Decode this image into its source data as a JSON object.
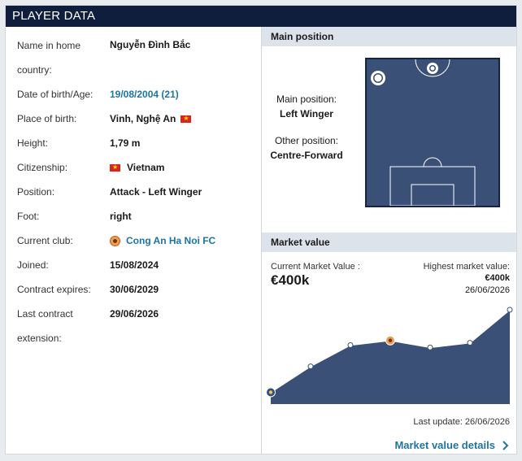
{
  "header": {
    "title": "PLAYER DATA"
  },
  "player_data": {
    "rows": [
      {
        "label_lines": [
          "Name in home",
          "country:"
        ],
        "value": "Nguyễn Đình Bắc"
      },
      {
        "label_lines": [
          "Date of birth/Age:"
        ],
        "value": "19/08/2004 (21)"
      },
      {
        "label_lines": [
          "Place of birth:"
        ],
        "value": "Vinh, Nghệ An"
      },
      {
        "label_lines": [
          "Height:"
        ],
        "value": "1,79 m"
      },
      {
        "label_lines": [
          "Citizenship:"
        ],
        "value": "Vietnam"
      },
      {
        "label_lines": [
          "Position:"
        ],
        "value": "Attack - Left Winger"
      },
      {
        "label_lines": [
          "Foot:"
        ],
        "value": "right"
      },
      {
        "label_lines": [
          "Current club:"
        ],
        "value": "Cong An Ha Noi FC"
      },
      {
        "label_lines": [
          "Joined:"
        ],
        "value": "15/08/2024"
      },
      {
        "label_lines": [
          "Contract expires:"
        ],
        "value": "30/06/2029"
      },
      {
        "label_lines": [
          "Last contract",
          "extension:"
        ],
        "value": "29/06/2026"
      }
    ]
  },
  "main_position": {
    "title": "Main position",
    "main_label": "Main position:",
    "main_value": "Left Winger",
    "other_label": "Other position:",
    "other_value": "Centre-Forward"
  },
  "market_value": {
    "title": "Market value",
    "current_label": "Current Market Value :",
    "current_value": "€400k",
    "highest_label": "Highest market value:",
    "highest_value": "€400k",
    "highest_date": "26/06/2026",
    "last_update": "Last update: 26/06/2026",
    "details_link": "Market value details",
    "chart_data": {
      "type": "area",
      "points": [
        {
          "x": 0,
          "y": 50,
          "club_badge": "blue"
        },
        {
          "x": 1,
          "y": 160
        },
        {
          "x": 2,
          "y": 250
        },
        {
          "x": 3,
          "y": 270,
          "club_badge": "orange"
        },
        {
          "x": 4,
          "y": 240
        },
        {
          "x": 5,
          "y": 260
        },
        {
          "x": 6,
          "y": 400
        }
      ],
      "ylim": [
        0,
        400
      ]
    }
  },
  "colors": {
    "header_bg": "#0e1e3c",
    "link": "#1d75a3",
    "pitch": "#3a5077",
    "chart_area": "#3a5077"
  }
}
